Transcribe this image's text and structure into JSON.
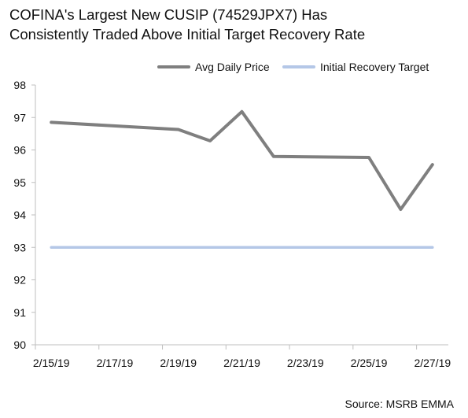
{
  "chart_data": {
    "type": "line",
    "title": "COFINA's Largest New CUSIP (74529JPX7) Has Consistently Traded Above Initial Target Recovery Rate",
    "xlabel": "",
    "ylabel": "",
    "ylim": [
      90,
      98
    ],
    "yticks": [
      "90",
      "91",
      "92",
      "93",
      "94",
      "95",
      "96",
      "97",
      "98"
    ],
    "xticks": [
      "2/15/19",
      "2/17/19",
      "2/19/19",
      "2/21/19",
      "2/23/19",
      "2/25/19",
      "2/27/19"
    ],
    "legend_position": "top-right",
    "grid": false,
    "series": [
      {
        "name": "Avg Daily Price",
        "color": "#7f7f7f",
        "points": [
          {
            "x": "2/15/19",
            "y": 96.85
          },
          {
            "x": "2/19/19",
            "y": 96.63
          },
          {
            "x": "2/20/19",
            "y": 96.28
          },
          {
            "x": "2/21/19",
            "y": 97.18
          },
          {
            "x": "2/22/19",
            "y": 95.8
          },
          {
            "x": "2/25/19",
            "y": 95.77
          },
          {
            "x": "2/26/19",
            "y": 94.17
          },
          {
            "x": "2/27/19",
            "y": 95.55
          }
        ]
      },
      {
        "name": "Initial Recovery Target",
        "color": "#b4c7e7",
        "points": [
          {
            "x": "2/15/19",
            "y": 93.0
          },
          {
            "x": "2/27/19",
            "y": 93.0
          }
        ]
      }
    ]
  },
  "source": "Source: MSRB EMMA"
}
